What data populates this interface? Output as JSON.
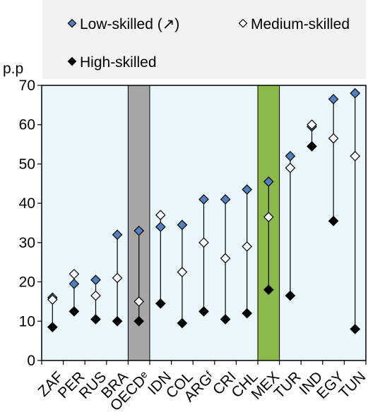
{
  "chart_data": {
    "type": "dot-range",
    "ylabel": "p.p",
    "ylim": [
      0,
      70
    ],
    "yticks": [
      0,
      10,
      20,
      30,
      40,
      50,
      60,
      70
    ],
    "grid": false,
    "legend_position": "top",
    "categories": [
      "ZAF",
      "PER",
      "RUS",
      "BRA",
      "OECDᵉ",
      "IDN",
      "COL",
      "ARGᶠ",
      "CRI",
      "CHL",
      "MEX",
      "TUR",
      "IND",
      "EGY",
      "TUN"
    ],
    "highlighted": [
      {
        "category": "OECDᵉ",
        "color": "#a6a6a6"
      },
      {
        "category": "MEX",
        "color": "#8cb94c"
      }
    ],
    "series": [
      {
        "name": "Low-skilled (↗)",
        "marker": "diamond",
        "color": "#4f81bd",
        "values": [
          16,
          19.5,
          20.5,
          32,
          33,
          34,
          34.5,
          41,
          41,
          43.5,
          45.5,
          52,
          59.5,
          66.5,
          68
        ]
      },
      {
        "name": "Medium-skilled",
        "marker": "diamond-open",
        "color": "#ffffff",
        "values": [
          15.5,
          22,
          16.5,
          21,
          15,
          37,
          22.5,
          30,
          26,
          29,
          36.5,
          49,
          60,
          56.5,
          52
        ]
      },
      {
        "name": "High-skilled",
        "marker": "diamond",
        "color": "#000000",
        "values": [
          8.5,
          12.5,
          10.5,
          10,
          10,
          14.5,
          9.5,
          12.5,
          10.5,
          12,
          18,
          16.5,
          54.5,
          35.5,
          8
        ]
      }
    ]
  }
}
